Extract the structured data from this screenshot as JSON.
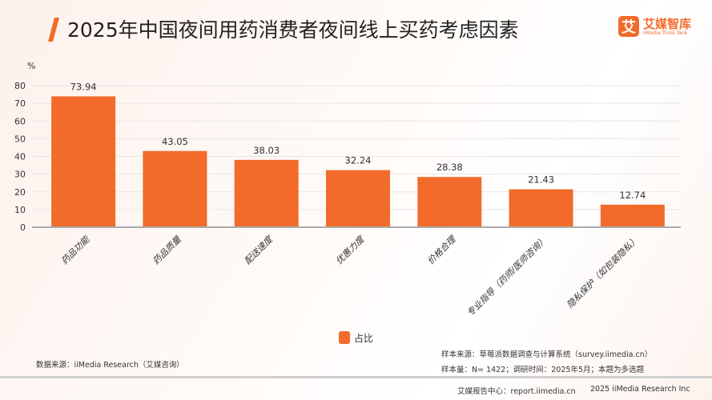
{
  "header": {
    "title": "2025年中国夜间用药消费者夜间线上买药考虑因素",
    "logo_mark": "艾",
    "logo_cn": "艾媒智库",
    "logo_en": "iiMedia Think Tank"
  },
  "chart_data": {
    "type": "bar",
    "title": "2025年中国夜间用药消费者夜间线上买药考虑因素",
    "ylabel": "%",
    "ylim": [
      0,
      80
    ],
    "yticks": [
      0,
      10,
      20,
      30,
      40,
      50,
      60,
      70,
      80
    ],
    "grid": true,
    "categories": [
      "药品功能",
      "药品质量",
      "配送速度",
      "优惠力度",
      "价格合理",
      "专业指导（药师/医师咨询）",
      "隐私保护（如包装隐私）"
    ],
    "series": [
      {
        "name": "占比",
        "values": [
          73.94,
          43.05,
          38.03,
          32.24,
          28.38,
          21.43,
          12.74
        ],
        "color": "#f26b2a"
      }
    ],
    "legend": "bottom"
  },
  "footer": {
    "source": "数据来源：iiMedia Research（艾媒咨询）",
    "sample_source": "样本来源：草莓派数据调查与计算系统（survey.iimedia.cn）",
    "sample_size": "样本量：N= 1422；调研时间：2025年5月；本题为多选题",
    "report_center": "艾媒报告中心：report.iimedia.cn",
    "copyright": "2025 iiMedia Research Inc"
  }
}
